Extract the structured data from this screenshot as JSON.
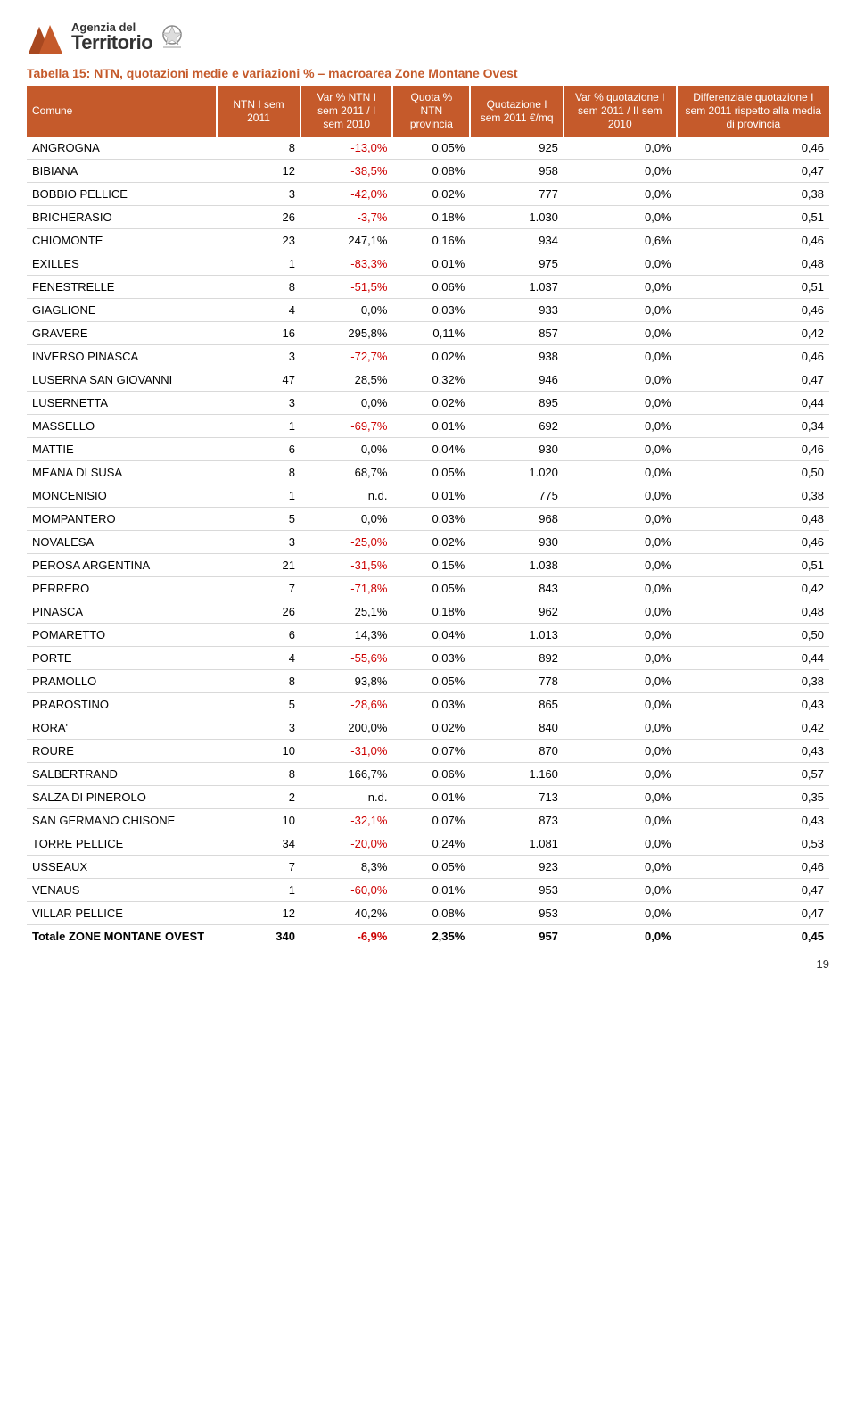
{
  "logo": {
    "line1": "Agenzia del",
    "line2": "Territorio"
  },
  "title": "Tabella 15: NTN, quotazioni medie e variazioni % – macroarea Zone Montane Ovest",
  "columns": [
    "Comune",
    "NTN I sem 2011",
    "Var % NTN I sem 2011 / I sem 2010",
    "Quota % NTN provincia",
    "Quotazione I sem 2011 €/mq",
    "Var % quotazione I sem 2011 / II sem 2010",
    "Differenziale quotazione I sem 2011 rispetto alla media di provincia"
  ],
  "rows": [
    {
      "c": "ANGROGNA",
      "v": [
        "8",
        "-13,0%",
        "0,05%",
        "925",
        "0,0%",
        "0,46"
      ]
    },
    {
      "c": "BIBIANA",
      "v": [
        "12",
        "-38,5%",
        "0,08%",
        "958",
        "0,0%",
        "0,47"
      ]
    },
    {
      "c": "BOBBIO PELLICE",
      "v": [
        "3",
        "-42,0%",
        "0,02%",
        "777",
        "0,0%",
        "0,38"
      ]
    },
    {
      "c": "BRICHERASIO",
      "v": [
        "26",
        "-3,7%",
        "0,18%",
        "1.030",
        "0,0%",
        "0,51"
      ]
    },
    {
      "c": "CHIOMONTE",
      "v": [
        "23",
        "247,1%",
        "0,16%",
        "934",
        "0,6%",
        "0,46"
      ]
    },
    {
      "c": "EXILLES",
      "v": [
        "1",
        "-83,3%",
        "0,01%",
        "975",
        "0,0%",
        "0,48"
      ]
    },
    {
      "c": "FENESTRELLE",
      "v": [
        "8",
        "-51,5%",
        "0,06%",
        "1.037",
        "0,0%",
        "0,51"
      ]
    },
    {
      "c": "GIAGLIONE",
      "v": [
        "4",
        "0,0%",
        "0,03%",
        "933",
        "0,0%",
        "0,46"
      ]
    },
    {
      "c": "GRAVERE",
      "v": [
        "16",
        "295,8%",
        "0,11%",
        "857",
        "0,0%",
        "0,42"
      ]
    },
    {
      "c": "INVERSO PINASCA",
      "v": [
        "3",
        "-72,7%",
        "0,02%",
        "938",
        "0,0%",
        "0,46"
      ]
    },
    {
      "c": "LUSERNA SAN GIOVANNI",
      "v": [
        "47",
        "28,5%",
        "0,32%",
        "946",
        "0,0%",
        "0,47"
      ]
    },
    {
      "c": "LUSERNETTA",
      "v": [
        "3",
        "0,0%",
        "0,02%",
        "895",
        "0,0%",
        "0,44"
      ]
    },
    {
      "c": "MASSELLO",
      "v": [
        "1",
        "-69,7%",
        "0,01%",
        "692",
        "0,0%",
        "0,34"
      ]
    },
    {
      "c": "MATTIE",
      "v": [
        "6",
        "0,0%",
        "0,04%",
        "930",
        "0,0%",
        "0,46"
      ]
    },
    {
      "c": "MEANA DI SUSA",
      "v": [
        "8",
        "68,7%",
        "0,05%",
        "1.020",
        "0,0%",
        "0,50"
      ]
    },
    {
      "c": "MONCENISIO",
      "v": [
        "1",
        "n.d.",
        "0,01%",
        "775",
        "0,0%",
        "0,38"
      ]
    },
    {
      "c": "MOMPANTERO",
      "v": [
        "5",
        "0,0%",
        "0,03%",
        "968",
        "0,0%",
        "0,48"
      ]
    },
    {
      "c": "NOVALESA",
      "v": [
        "3",
        "-25,0%",
        "0,02%",
        "930",
        "0,0%",
        "0,46"
      ]
    },
    {
      "c": "PEROSA ARGENTINA",
      "v": [
        "21",
        "-31,5%",
        "0,15%",
        "1.038",
        "0,0%",
        "0,51"
      ]
    },
    {
      "c": "PERRERO",
      "v": [
        "7",
        "-71,8%",
        "0,05%",
        "843",
        "0,0%",
        "0,42"
      ]
    },
    {
      "c": "PINASCA",
      "v": [
        "26",
        "25,1%",
        "0,18%",
        "962",
        "0,0%",
        "0,48"
      ]
    },
    {
      "c": "POMARETTO",
      "v": [
        "6",
        "14,3%",
        "0,04%",
        "1.013",
        "0,0%",
        "0,50"
      ]
    },
    {
      "c": "PORTE",
      "v": [
        "4",
        "-55,6%",
        "0,03%",
        "892",
        "0,0%",
        "0,44"
      ]
    },
    {
      "c": "PRAMOLLO",
      "v": [
        "8",
        "93,8%",
        "0,05%",
        "778",
        "0,0%",
        "0,38"
      ]
    },
    {
      "c": "PRAROSTINO",
      "v": [
        "5",
        "-28,6%",
        "0,03%",
        "865",
        "0,0%",
        "0,43"
      ]
    },
    {
      "c": "RORA'",
      "v": [
        "3",
        "200,0%",
        "0,02%",
        "840",
        "0,0%",
        "0,42"
      ]
    },
    {
      "c": "ROURE",
      "v": [
        "10",
        "-31,0%",
        "0,07%",
        "870",
        "0,0%",
        "0,43"
      ]
    },
    {
      "c": "SALBERTRAND",
      "v": [
        "8",
        "166,7%",
        "0,06%",
        "1.160",
        "0,0%",
        "0,57"
      ]
    },
    {
      "c": "SALZA DI PINEROLO",
      "v": [
        "2",
        "n.d.",
        "0,01%",
        "713",
        "0,0%",
        "0,35"
      ]
    },
    {
      "c": "SAN GERMANO CHISONE",
      "v": [
        "10",
        "-32,1%",
        "0,07%",
        "873",
        "0,0%",
        "0,43"
      ]
    },
    {
      "c": "TORRE PELLICE",
      "v": [
        "34",
        "-20,0%",
        "0,24%",
        "1.081",
        "0,0%",
        "0,53"
      ]
    },
    {
      "c": "USSEAUX",
      "v": [
        "7",
        "8,3%",
        "0,05%",
        "923",
        "0,0%",
        "0,46"
      ]
    },
    {
      "c": "VENAUS",
      "v": [
        "1",
        "-60,0%",
        "0,01%",
        "953",
        "0,0%",
        "0,47"
      ]
    },
    {
      "c": "VILLAR PELLICE",
      "v": [
        "12",
        "40,2%",
        "0,08%",
        "953",
        "0,0%",
        "0,47"
      ]
    }
  ],
  "total": {
    "c": "Totale ZONE MONTANE OVEST",
    "v": [
      "340",
      "-6,9%",
      "2,35%",
      "957",
      "0,0%",
      "0,45"
    ]
  },
  "page_number": "19",
  "colors": {
    "header_bg": "#c55a2b",
    "header_fg": "#ffffff",
    "title_color": "#c55a2b",
    "negative_color": "#cc0000",
    "row_border": "#d9d9d9"
  }
}
